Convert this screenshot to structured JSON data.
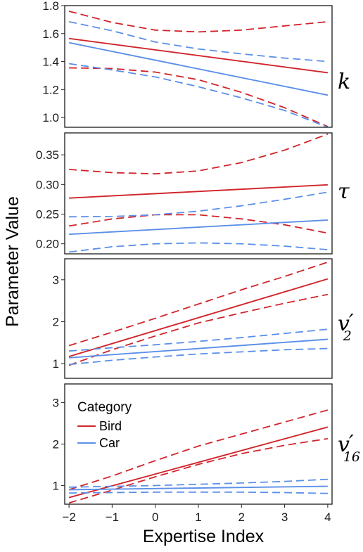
{
  "chart_data": {
    "type": "line",
    "ylabel": "Parameter Value",
    "xlabel": "Expertise Index",
    "xlim": [
      -2.1,
      4.1
    ],
    "xticks": [
      -2,
      -1,
      0,
      1,
      2,
      3,
      4
    ],
    "xtick_labels": [
      "−2",
      "−1",
      "0",
      "1",
      "2",
      "3",
      "4"
    ],
    "legend": {
      "title": "Category",
      "placement": "top-left of bottom panel",
      "entries": [
        {
          "name": "Bird",
          "color": "#d0252b"
        },
        {
          "name": "Car",
          "color": "#5b8fe8"
        }
      ]
    },
    "colors": {
      "Bird": "#d0252b",
      "Car": "#5b8fe8"
    },
    "panels": [
      {
        "param": "k",
        "param_sub": "",
        "prime": false,
        "ylim": [
          0.93,
          1.8
        ],
        "yticks": [
          1.0,
          1.2,
          1.4,
          1.6,
          1.8
        ],
        "ytick_labels": [
          "1.0",
          "1.2",
          "1.4",
          "1.6",
          "1.8"
        ],
        "series": [
          {
            "name": "Bird",
            "fit": [
              [
                -2,
                1.565
              ],
              [
                4,
                1.32
              ]
            ],
            "upper": [
              [
                -2,
                1.76
              ],
              [
                -1,
                1.68
              ],
              [
                0,
                1.625
              ],
              [
                1,
                1.612
              ],
              [
                2,
                1.625
              ],
              [
                3,
                1.655
              ],
              [
                4,
                1.685
              ]
            ],
            "lower": [
              [
                -2,
                1.355
              ],
              [
                -1,
                1.35
              ],
              [
                0,
                1.325
              ],
              [
                1,
                1.27
              ],
              [
                2,
                1.18
              ],
              [
                3,
                1.07
              ],
              [
                4,
                0.935
              ]
            ]
          },
          {
            "name": "Car",
            "fit": [
              [
                -2,
                1.535
              ],
              [
                4,
                1.16
              ]
            ],
            "upper": [
              [
                -2,
                1.685
              ],
              [
                -1,
                1.62
              ],
              [
                0,
                1.54
              ],
              [
                1,
                1.49
              ],
              [
                2,
                1.455
              ],
              [
                3,
                1.425
              ],
              [
                4,
                1.4
              ]
            ],
            "lower": [
              [
                -2,
                1.385
              ],
              [
                -1,
                1.34
              ],
              [
                0,
                1.29
              ],
              [
                1,
                1.22
              ],
              [
                2,
                1.14
              ],
              [
                3,
                1.05
              ],
              [
                4,
                0.93
              ]
            ]
          }
        ]
      },
      {
        "param": "τ",
        "param_sub": "",
        "prime": false,
        "ylim": [
          0.183,
          0.387
        ],
        "yticks": [
          0.2,
          0.25,
          0.3,
          0.35
        ],
        "ytick_labels": [
          "0.20",
          "0.25",
          "0.30",
          "0.35"
        ],
        "series": [
          {
            "name": "Bird",
            "fit": [
              [
                -2,
                0.277
              ],
              [
                4,
                0.2995
              ]
            ],
            "upper": [
              [
                -2,
                0.3255
              ],
              [
                -1,
                0.32
              ],
              [
                0,
                0.318
              ],
              [
                1,
                0.323
              ],
              [
                2,
                0.337
              ],
              [
                3,
                0.358
              ],
              [
                4,
                0.385
              ]
            ],
            "lower": [
              [
                -2,
                0.23
              ],
              [
                -1,
                0.242
              ],
              [
                0,
                0.249
              ],
              [
                1,
                0.249
              ],
              [
                2,
                0.242
              ],
              [
                3,
                0.232
              ],
              [
                4,
                0.218
              ]
            ]
          },
          {
            "name": "Car",
            "fit": [
              [
                -2,
                0.216
              ],
              [
                4,
                0.24
              ]
            ],
            "upper": [
              [
                -2,
                0.2455
              ],
              [
                -1,
                0.246
              ],
              [
                0,
                0.249
              ],
              [
                1,
                0.255
              ],
              [
                2,
                0.264
              ],
              [
                3,
                0.275
              ],
              [
                4,
                0.287
              ]
            ],
            "lower": [
              [
                -2,
                0.186
              ],
              [
                -1,
                0.195
              ],
              [
                0,
                0.2
              ],
              [
                1,
                0.2015
              ],
              [
                2,
                0.2
              ],
              [
                3,
                0.196
              ],
              [
                4,
                0.19
              ]
            ]
          }
        ]
      },
      {
        "param": "v",
        "param_sub": "2",
        "prime": true,
        "ylim": [
          0.65,
          3.5
        ],
        "yticks": [
          1,
          2,
          3
        ],
        "ytick_labels": [
          "1",
          "2",
          "3"
        ],
        "series": [
          {
            "name": "Bird",
            "fit": [
              [
                -2,
                1.17
              ],
              [
                4,
                3.02
              ]
            ],
            "upper": [
              [
                -2,
                1.43
              ],
              [
                -1,
                1.75
              ],
              [
                0,
                2.08
              ],
              [
                1,
                2.42
              ],
              [
                2,
                2.76
              ],
              [
                3,
                3.08
              ],
              [
                4,
                3.42
              ]
            ],
            "lower": [
              [
                -2,
                0.96
              ],
              [
                -1,
                1.33
              ],
              [
                0,
                1.66
              ],
              [
                1,
                1.97
              ],
              [
                2,
                2.21
              ],
              [
                3,
                2.44
              ],
              [
                4,
                2.65
              ]
            ]
          },
          {
            "name": "Car",
            "fit": [
              [
                -2,
                1.14
              ],
              [
                4,
                1.58
              ]
            ],
            "upper": [
              [
                -2,
                1.3
              ],
              [
                -1,
                1.38
              ],
              [
                0,
                1.45
              ],
              [
                1,
                1.53
              ],
              [
                2,
                1.62
              ],
              [
                3,
                1.72
              ],
              [
                4,
                1.82
              ]
            ],
            "lower": [
              [
                -2,
                0.98
              ],
              [
                -1,
                1.08
              ],
              [
                0,
                1.16
              ],
              [
                1,
                1.23
              ],
              [
                2,
                1.28
              ],
              [
                3,
                1.33
              ],
              [
                4,
                1.36
              ]
            ]
          }
        ]
      },
      {
        "param": "v",
        "param_sub": "16",
        "prime": true,
        "ylim": [
          0.55,
          3.45
        ],
        "yticks": [
          1,
          2,
          3
        ],
        "ytick_labels": [
          "1",
          "2",
          "3"
        ],
        "series": [
          {
            "name": "Bird",
            "fit": [
              [
                -2,
                0.71
              ],
              [
                4,
                2.41
              ]
            ],
            "upper": [
              [
                -2,
                0.9
              ],
              [
                -1,
                1.23
              ],
              [
                0,
                1.6
              ],
              [
                1,
                1.95
              ],
              [
                2,
                2.24
              ],
              [
                3,
                2.53
              ],
              [
                4,
                2.82
              ]
            ],
            "lower": [
              [
                -2,
                0.58
              ],
              [
                -1,
                0.89
              ],
              [
                0,
                1.21
              ],
              [
                1,
                1.51
              ],
              [
                2,
                1.77
              ],
              [
                3,
                1.97
              ],
              [
                4,
                2.13
              ]
            ]
          },
          {
            "name": "Car",
            "fit": [
              [
                -2,
                0.9
              ],
              [
                4,
                0.98
              ]
            ],
            "upper": [
              [
                -2,
                0.96
              ],
              [
                -1,
                0.98
              ],
              [
                0,
                1.0
              ],
              [
                1,
                1.03
              ],
              [
                2,
                1.06
              ],
              [
                3,
                1.1
              ],
              [
                4,
                1.15
              ]
            ],
            "lower": [
              [
                -2,
                0.82
              ],
              [
                -1,
                0.83
              ],
              [
                0,
                0.84
              ],
              [
                1,
                0.84
              ],
              [
                2,
                0.84
              ],
              [
                3,
                0.83
              ],
              [
                4,
                0.81
              ]
            ]
          }
        ]
      }
    ]
  }
}
